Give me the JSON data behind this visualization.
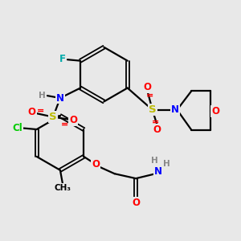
{
  "bg_color": "#e8e8e8",
  "fig_size": [
    3.0,
    3.0
  ],
  "dpi": 100,
  "line_color": "#000000",
  "lw": 1.6,
  "dlw": 1.3,
  "doff": 0.007,
  "colors": {
    "F": "#00aaaa",
    "Cl": "#00cc00",
    "N": "#0000ff",
    "O": "#ff0000",
    "S": "#bbbb00",
    "C": "#000000",
    "H": "#888888"
  },
  "fs": 8.5,
  "fs_small": 7.5
}
